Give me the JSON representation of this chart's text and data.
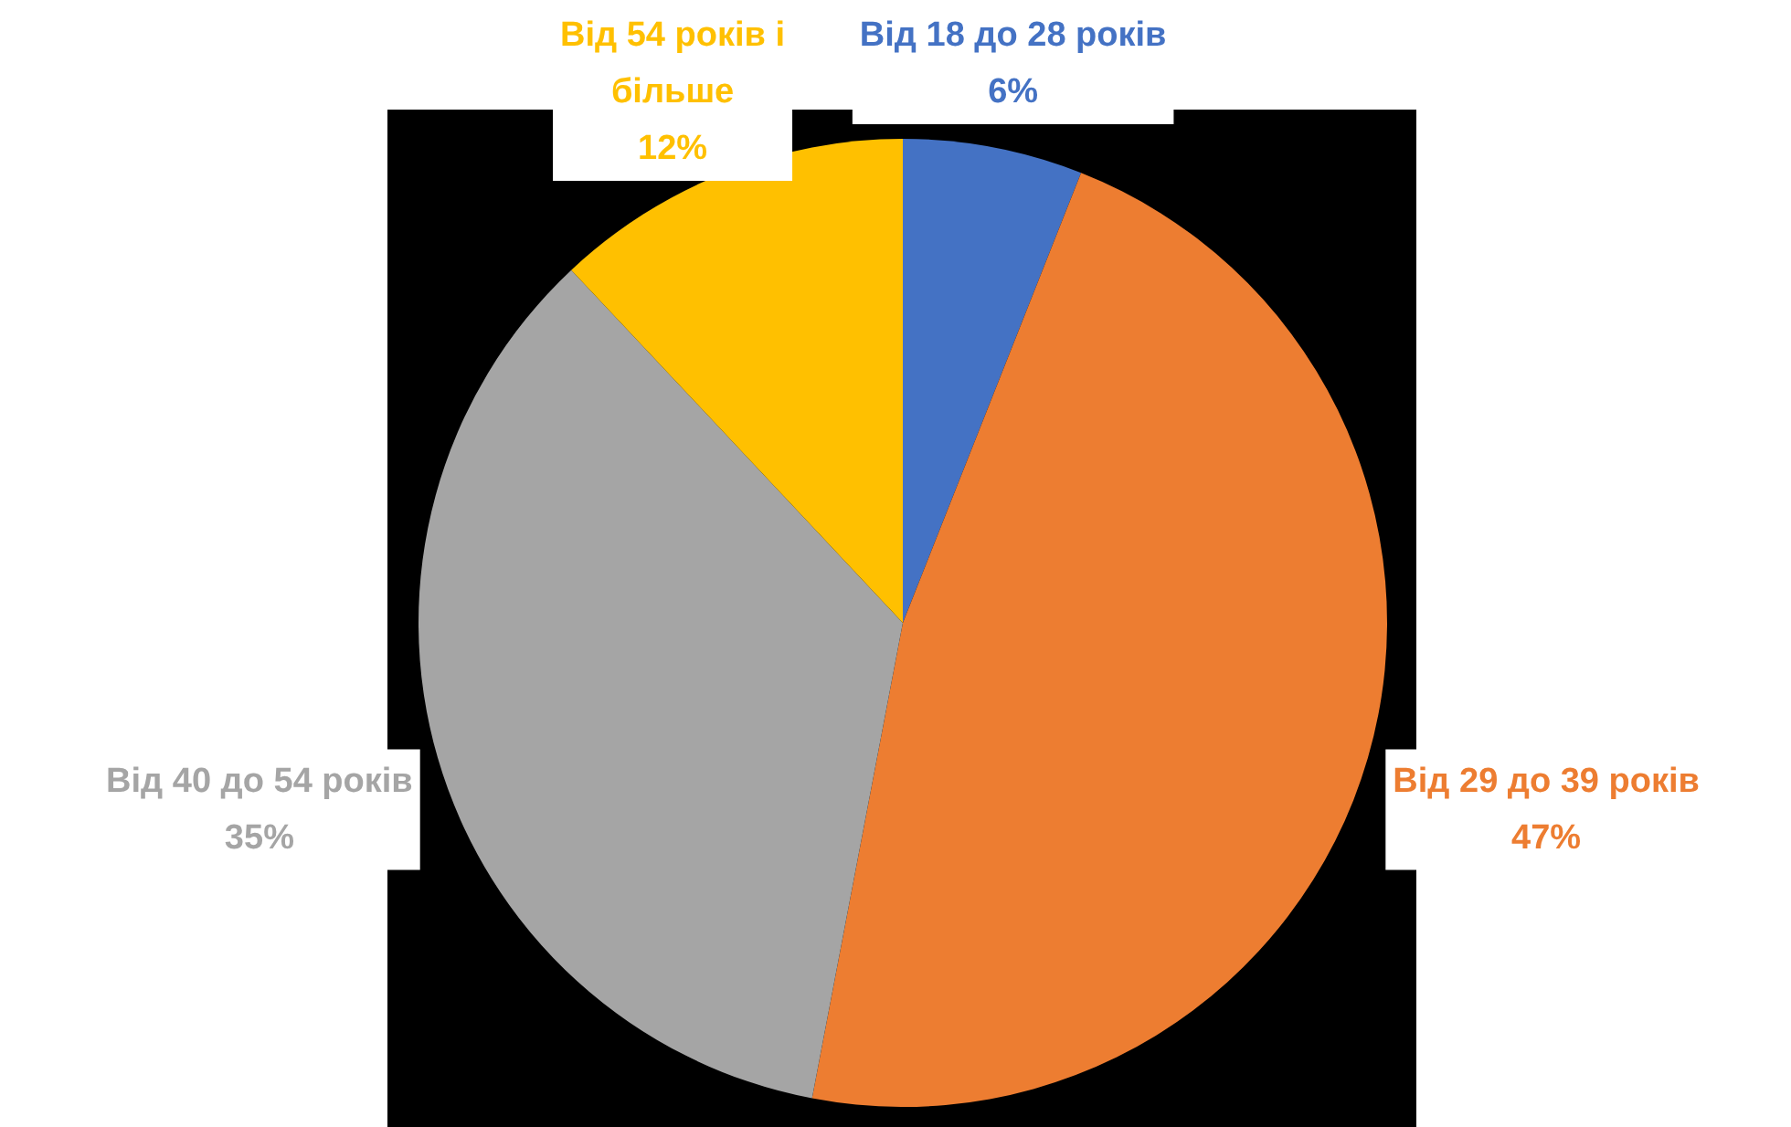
{
  "chart_data": {
    "type": "pie",
    "categories": [
      "Від 18 до 28 років",
      "Від 29 до 39 років",
      "Від 40 до 54 років",
      "Від 54 років і більше"
    ],
    "values": [
      6,
      47,
      35,
      12
    ],
    "value_labels": [
      "6%",
      "47%",
      "35%",
      "12%"
    ],
    "colors": [
      "#4472c4",
      "#ed7d31",
      "#a5a5a5",
      "#ffc000"
    ]
  }
}
